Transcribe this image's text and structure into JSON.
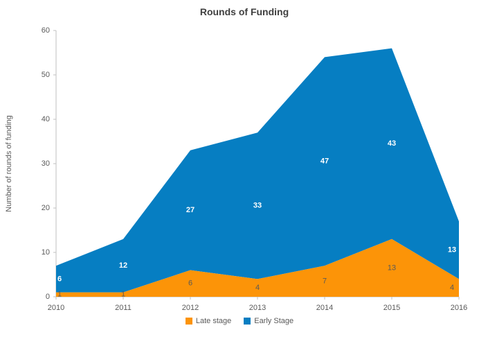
{
  "chart_data": {
    "type": "area",
    "stacked": true,
    "title": "Rounds of Funding",
    "xlabel": "",
    "ylabel": "Number of rounds of funding",
    "categories": [
      "2010",
      "2011",
      "2012",
      "2013",
      "2014",
      "2015",
      "2016"
    ],
    "series": [
      {
        "name": "Late stage",
        "color": "#FC9408",
        "label_color": "#595959",
        "label_bold": false,
        "values": [
          1,
          1,
          6,
          4,
          7,
          13,
          4
        ]
      },
      {
        "name": "Early Stage",
        "color": "#067EC2",
        "label_color": "#FFFFFF",
        "label_bold": true,
        "values": [
          6,
          12,
          27,
          33,
          47,
          43,
          13
        ]
      }
    ],
    "ylim": [
      0,
      60
    ],
    "ytick_step": 10,
    "yticks": [
      "0",
      "10",
      "20",
      "30",
      "40",
      "50",
      "60"
    ],
    "grid": false,
    "legend_position": "bottom",
    "axis_color": "#BFBFBF",
    "tick_label_color": "#595959",
    "title_color": "#404040"
  }
}
